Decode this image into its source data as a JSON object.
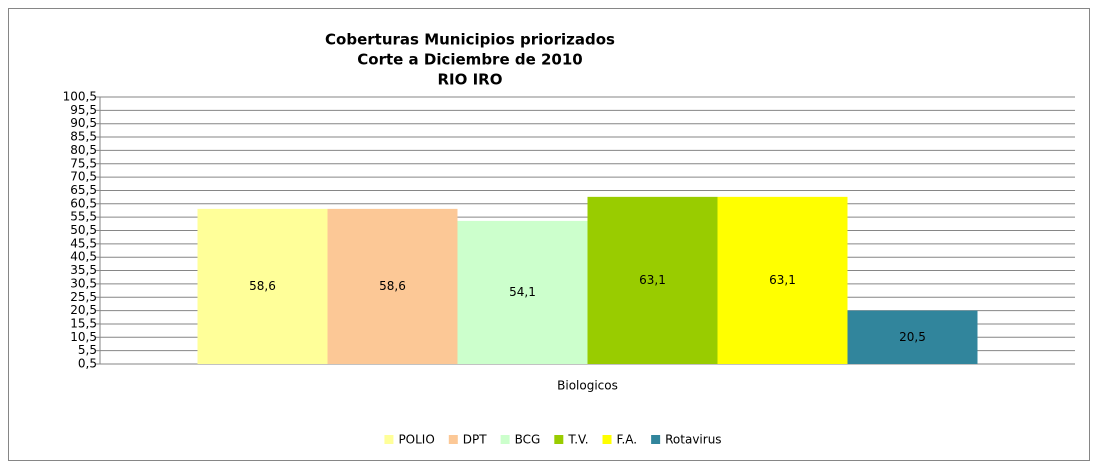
{
  "chart_data": {
    "type": "bar",
    "title": [
      "Coberturas Municipios priorizados",
      "Corte a Diciembre de 2010",
      "RIO IRO"
    ],
    "categories": [
      "Biologicos"
    ],
    "series": [
      {
        "name": "POLIO",
        "color": "#ffff99",
        "values": [
          58.6
        ],
        "value_labels": [
          "58,6"
        ]
      },
      {
        "name": "DPT",
        "color": "#fcc896",
        "values": [
          58.6
        ],
        "value_labels": [
          "58,6"
        ]
      },
      {
        "name": "BCG",
        "color": "#ccffcc",
        "values": [
          54.1
        ],
        "value_labels": [
          "54,1"
        ]
      },
      {
        "name": "T.V.",
        "color": "#99cc00",
        "values": [
          63.1
        ],
        "value_labels": [
          "63,1"
        ]
      },
      {
        "name": "F.A.",
        "color": "#ffff00",
        "values": [
          63.1
        ],
        "value_labels": [
          "63,1"
        ]
      },
      {
        "name": "Rotavirus",
        "color": "#31859c",
        "values": [
          20.5
        ],
        "value_labels": [
          "20,5"
        ]
      }
    ],
    "ylim": [
      0.5,
      100.5
    ],
    "yticks": [
      {
        "value": 0.5,
        "label": "0,5"
      },
      {
        "value": 5.5,
        "label": "5,5"
      },
      {
        "value": 10.5,
        "label": "10,5"
      },
      {
        "value": 15.5,
        "label": "15,5"
      },
      {
        "value": 20.5,
        "label": "20,5"
      },
      {
        "value": 25.5,
        "label": "25,5"
      },
      {
        "value": 30.5,
        "label": "30,5"
      },
      {
        "value": 35.5,
        "label": "35,5"
      },
      {
        "value": 40.5,
        "label": "40,5"
      },
      {
        "value": 45.5,
        "label": "45,5"
      },
      {
        "value": 50.5,
        "label": "50,5"
      },
      {
        "value": 55.5,
        "label": "55,5"
      },
      {
        "value": 60.5,
        "label": "60,5"
      },
      {
        "value": 65.5,
        "label": "65,5"
      },
      {
        "value": 70.5,
        "label": "70,5"
      },
      {
        "value": 75.5,
        "label": "75,5"
      },
      {
        "value": 80.5,
        "label": "80,5"
      },
      {
        "value": 85.5,
        "label": "85,5"
      },
      {
        "value": 90.5,
        "label": "90,5"
      },
      {
        "value": 95.5,
        "label": "95,5"
      },
      {
        "value": 100.5,
        "label": "100,5"
      }
    ],
    "grid": true
  }
}
